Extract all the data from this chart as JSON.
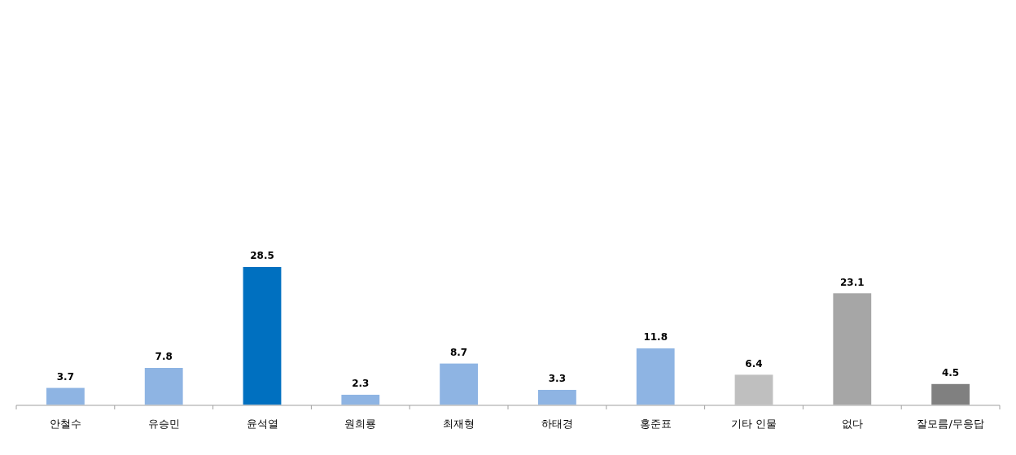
{
  "chart_data": {
    "type": "bar",
    "categories": [
      "안철수",
      "유승민",
      "윤석열",
      "원희룡",
      "최재형",
      "하태경",
      "홍준표",
      "기타 인물",
      "없다",
      "잘모름/무응답"
    ],
    "values": [
      3.7,
      7.8,
      28.5,
      2.3,
      8.7,
      3.3,
      11.8,
      6.4,
      23.1,
      4.5
    ],
    "colors": [
      "#8eb4e3",
      "#8eb4e3",
      "#0070c0",
      "#8eb4e3",
      "#8eb4e3",
      "#8eb4e3",
      "#8eb4e3",
      "#bfbfbf",
      "#a6a6a6",
      "#808080"
    ],
    "data_labels": true
  }
}
